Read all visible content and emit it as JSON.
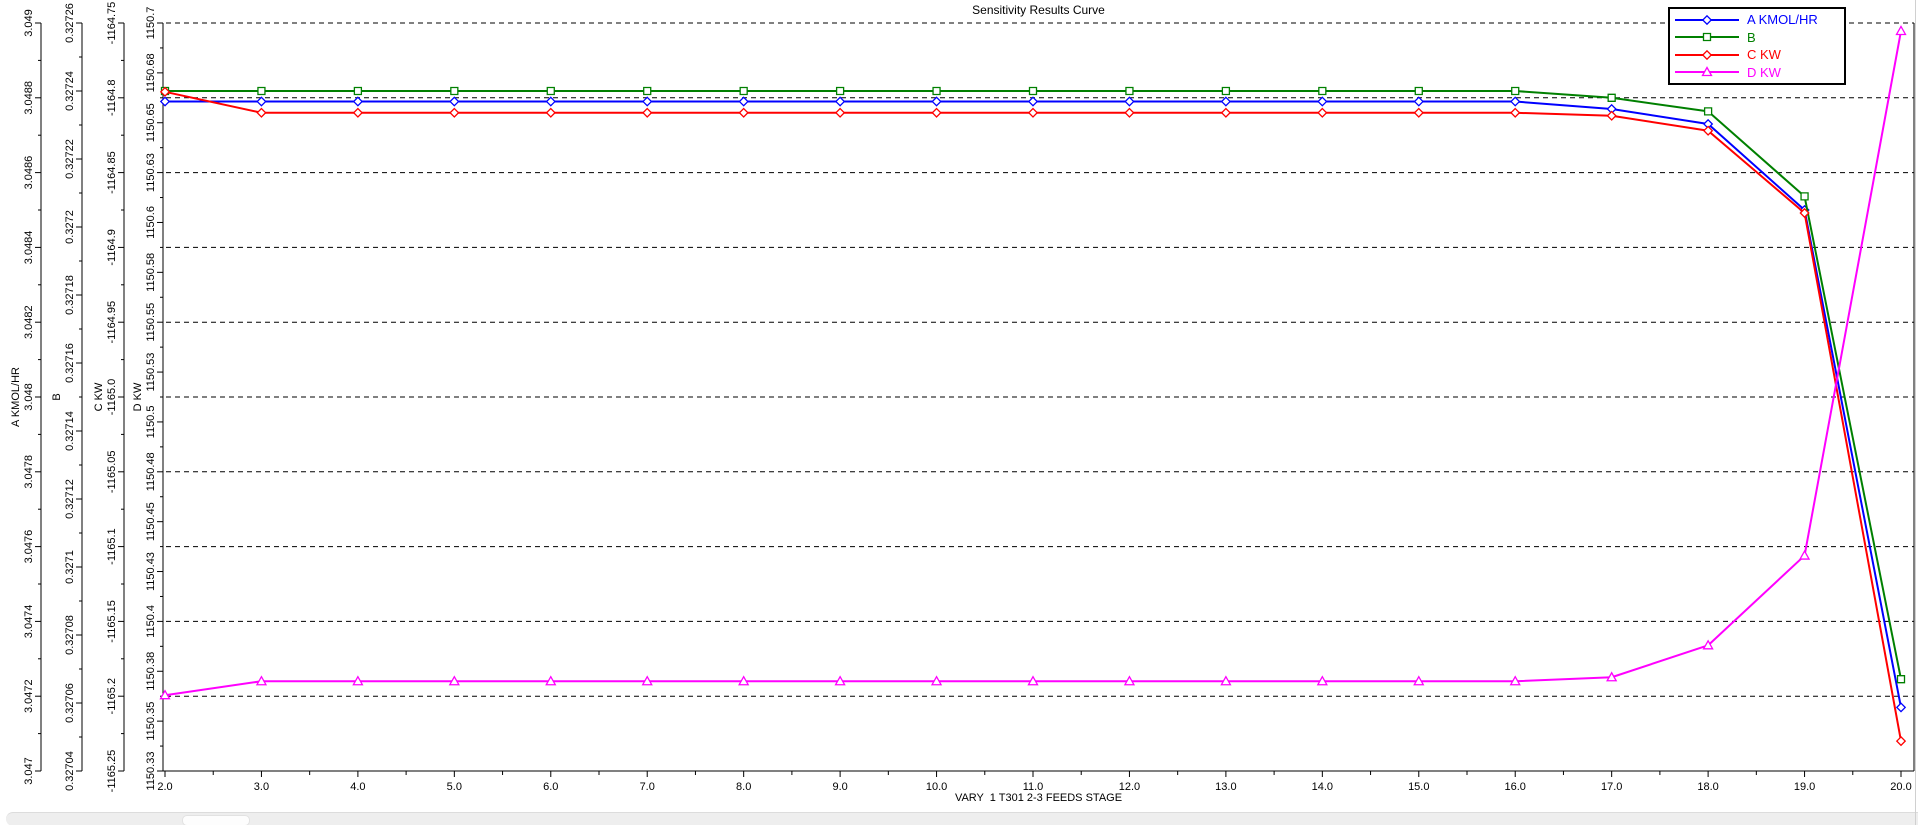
{
  "chart": {
    "title": "Sensitivity Results Curve",
    "x_axis": {
      "title": "VARY  1 T301 2-3 FEEDS STAGE",
      "min": 2.0,
      "max": 20.0,
      "major_step": 1.0,
      "minor_step": 0.5,
      "tick_labels": [
        "2.0",
        "3.0",
        "4.0",
        "5.0",
        "6.0",
        "7.0",
        "8.0",
        "9.0",
        "10.0",
        "11.0",
        "12.0",
        "13.0",
        "14.0",
        "15.0",
        "16.0",
        "17.0",
        "18.0",
        "19.0",
        "20.0"
      ]
    },
    "y_axes": [
      {
        "key": "A",
        "title": "A KMOL/HR",
        "min": 3.047,
        "max": 3.049,
        "tick_labels": [
          "3.049",
          "3.0488",
          "3.0486",
          "3.0484",
          "3.0482",
          "3.048",
          "3.0478",
          "3.0476",
          "3.0474",
          "3.0472",
          "3.047"
        ]
      },
      {
        "key": "B",
        "title": "B",
        "min": 0.32704,
        "max": 0.32726,
        "tick_labels": [
          "0.32726",
          "0.32724",
          "0.32722",
          "0.3272",
          "0.32718",
          "0.32716",
          "0.32714",
          "0.32712",
          "0.3271",
          "0.32708",
          "0.32706",
          "0.32704"
        ]
      },
      {
        "key": "C",
        "title": "C KW",
        "min": -1165.25,
        "max": -1164.75,
        "tick_labels": [
          "-1164.75",
          "-1164.8",
          "-1164.85",
          "-1164.9",
          "-1164.95",
          "-1165.0",
          "-1165.05",
          "-1165.1",
          "-1165.15",
          "-1165.2",
          "-1165.25"
        ]
      },
      {
        "key": "D",
        "title": "D KW",
        "min": 1150.325,
        "max": 1150.7,
        "tick_labels": [
          "1150.7",
          "1150.68",
          "1150.65",
          "1150.63",
          "1150.6",
          "1150.58",
          "1150.55",
          "1150.53",
          "1150.5",
          "1150.48",
          "1150.45",
          "1150.43",
          "1150.4",
          "1150.38",
          "1150.35",
          "1150.33"
        ]
      }
    ],
    "legend": {
      "items": [
        {
          "label": "A KMOL/HR",
          "color": "#0000ff",
          "marker": "diamond"
        },
        {
          "label": "B",
          "color": "#008000",
          "marker": "square"
        },
        {
          "label": "C KW",
          "color": "#ff0000",
          "marker": "diamond"
        },
        {
          "label": "D KW",
          "color": "#ff00ff",
          "marker": "triangle"
        }
      ]
    }
  },
  "chart_data": {
    "type": "line",
    "title": "Sensitivity Results Curve",
    "xlabel": "VARY  1 T301 2-3 FEEDS STAGE",
    "xlim": [
      2.0,
      20.0
    ],
    "grid": "horizontal-dashed",
    "legend_position": "top-right",
    "x": [
      2,
      3,
      4,
      5,
      6,
      7,
      8,
      9,
      10,
      11,
      12,
      13,
      14,
      15,
      16,
      17,
      18,
      19,
      20
    ],
    "series": [
      {
        "name": "A KMOL/HR",
        "color": "#0000ff",
        "marker": "diamond",
        "ylim": [
          3.047,
          3.049
        ],
        "values": [
          3.04879,
          3.04879,
          3.04879,
          3.04879,
          3.04879,
          3.04879,
          3.04879,
          3.04879,
          3.04879,
          3.04879,
          3.04879,
          3.04879,
          3.04879,
          3.04879,
          3.04879,
          3.04877,
          3.04873,
          3.0485,
          3.04717
        ]
      },
      {
        "name": "B",
        "color": "#008000",
        "marker": "square",
        "ylim": [
          0.32704,
          0.32726
        ],
        "values": [
          0.32724,
          0.32724,
          0.32724,
          0.32724,
          0.32724,
          0.32724,
          0.32724,
          0.32724,
          0.32724,
          0.32724,
          0.32724,
          0.32724,
          0.32724,
          0.32724,
          0.32724,
          0.327238,
          0.327234,
          0.327209,
          0.327067
        ]
      },
      {
        "name": "C KW",
        "color": "#ff0000",
        "marker": "diamond",
        "ylim": [
          -1165.25,
          -1164.75
        ],
        "values": [
          -1164.796,
          -1164.81,
          -1164.81,
          -1164.81,
          -1164.81,
          -1164.81,
          -1164.81,
          -1164.81,
          -1164.81,
          -1164.81,
          -1164.81,
          -1164.81,
          -1164.81,
          -1164.81,
          -1164.81,
          -1164.812,
          -1164.822,
          -1164.877,
          -1165.23
        ]
      },
      {
        "name": "D KW",
        "color": "#ff00ff",
        "marker": "triangle",
        "ylim": [
          1150.325,
          1150.7
        ],
        "values": [
          1150.363,
          1150.37,
          1150.37,
          1150.37,
          1150.37,
          1150.37,
          1150.37,
          1150.37,
          1150.37,
          1150.37,
          1150.37,
          1150.37,
          1150.37,
          1150.37,
          1150.37,
          1150.372,
          1150.388,
          1150.433,
          1150.696
        ]
      }
    ]
  },
  "colors": {
    "background": "#ffffff",
    "axis": "#000000",
    "grid": "#000000"
  }
}
